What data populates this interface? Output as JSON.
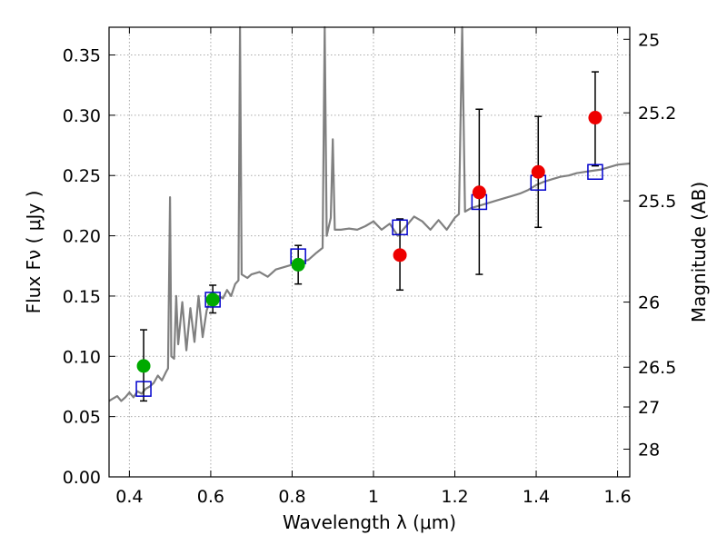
{
  "chart_data": {
    "type": "scatter",
    "title": "",
    "xlabel": "Wavelength  λ (μm)",
    "ylabel": "Flux  Fν  ( μJy )",
    "y2label": "Magnitude (AB)",
    "xlim": [
      0.35,
      1.63
    ],
    "ylim": [
      0.0,
      0.373
    ],
    "grid": true,
    "x_ticks": [
      0.4,
      0.6,
      0.8,
      1.0,
      1.2,
      1.4,
      1.6
    ],
    "x_tick_labels": [
      "0.4",
      "0.6",
      "0.8",
      "1",
      "1.2",
      "1.4",
      "1.6"
    ],
    "y_ticks": [
      0.0,
      0.05,
      0.1,
      0.15,
      0.2,
      0.25,
      0.3,
      0.35
    ],
    "y_tick_labels": [
      "0.00",
      "0.05",
      "0.10",
      "0.15",
      "0.20",
      "0.25",
      "0.30",
      "0.35"
    ],
    "y2_ticks": [
      {
        "label": "25",
        "flux": 0.363
      },
      {
        "label": "25.2",
        "flux": 0.302
      },
      {
        "label": "25.5",
        "flux": 0.229
      },
      {
        "label": "26",
        "flux": 0.145
      },
      {
        "label": "26.5",
        "flux": 0.091
      },
      {
        "label": "27",
        "flux": 0.058
      },
      {
        "label": "28",
        "flux": 0.023
      }
    ],
    "colors": {
      "spectrum": "#808080",
      "model": "#0000cc",
      "green": "#00aa00",
      "red": "#ee0000",
      "grid": "#aaaaaa",
      "errorbar": "#000000"
    },
    "series": [
      {
        "marker": "square",
        "color": "#0000cc",
        "x": [
          0.435,
          0.605,
          0.815,
          1.065,
          1.26,
          1.405,
          1.545
        ],
        "y": [
          0.073,
          0.147,
          0.183,
          0.207,
          0.228,
          0.244,
          0.253
        ]
      },
      {
        "marker": "circle",
        "color": "#00aa00",
        "x": [
          0.435,
          0.605,
          0.815
        ],
        "y": [
          0.092,
          0.147,
          0.176
        ],
        "yerr_low": [
          0.029,
          0.011,
          0.016
        ],
        "yerr_high": [
          0.03,
          0.012,
          0.016
        ]
      },
      {
        "marker": "circle",
        "color": "#ee0000",
        "x": [
          1.065,
          1.26,
          1.405,
          1.545
        ],
        "y": [
          0.184,
          0.236,
          0.253,
          0.298
        ],
        "yerr_low": [
          0.029,
          0.068,
          0.046,
          0.04
        ],
        "yerr_high": [
          0.03,
          0.069,
          0.046,
          0.038
        ]
      },
      {
        "type": "line",
        "color": "#808080",
        "points": [
          [
            0.35,
            0.063
          ],
          [
            0.36,
            0.065
          ],
          [
            0.37,
            0.067
          ],
          [
            0.38,
            0.063
          ],
          [
            0.39,
            0.066
          ],
          [
            0.4,
            0.07
          ],
          [
            0.41,
            0.066
          ],
          [
            0.42,
            0.071
          ],
          [
            0.43,
            0.069
          ],
          [
            0.44,
            0.073
          ],
          [
            0.45,
            0.075
          ],
          [
            0.46,
            0.078
          ],
          [
            0.47,
            0.084
          ],
          [
            0.48,
            0.08
          ],
          [
            0.49,
            0.087
          ],
          [
            0.495,
            0.09
          ],
          [
            0.5,
            0.232
          ],
          [
            0.503,
            0.1
          ],
          [
            0.51,
            0.098
          ],
          [
            0.515,
            0.15
          ],
          [
            0.52,
            0.11
          ],
          [
            0.53,
            0.145
          ],
          [
            0.54,
            0.105
          ],
          [
            0.55,
            0.14
          ],
          [
            0.56,
            0.112
          ],
          [
            0.57,
            0.15
          ],
          [
            0.58,
            0.116
          ],
          [
            0.59,
            0.138
          ],
          [
            0.6,
            0.148
          ],
          [
            0.61,
            0.143
          ],
          [
            0.62,
            0.15
          ],
          [
            0.63,
            0.148
          ],
          [
            0.64,
            0.155
          ],
          [
            0.65,
            0.15
          ],
          [
            0.66,
            0.16
          ],
          [
            0.668,
            0.163
          ],
          [
            0.672,
            0.373
          ],
          [
            0.676,
            0.168
          ],
          [
            0.69,
            0.165
          ],
          [
            0.7,
            0.168
          ],
          [
            0.72,
            0.17
          ],
          [
            0.74,
            0.166
          ],
          [
            0.76,
            0.172
          ],
          [
            0.78,
            0.174
          ],
          [
            0.8,
            0.176
          ],
          [
            0.82,
            0.178
          ],
          [
            0.84,
            0.18
          ],
          [
            0.86,
            0.186
          ],
          [
            0.875,
            0.19
          ],
          [
            0.88,
            0.373
          ],
          [
            0.885,
            0.2
          ],
          [
            0.895,
            0.215
          ],
          [
            0.9,
            0.28
          ],
          [
            0.905,
            0.205
          ],
          [
            0.92,
            0.205
          ],
          [
            0.94,
            0.206
          ],
          [
            0.96,
            0.205
          ],
          [
            0.98,
            0.208
          ],
          [
            1.0,
            0.212
          ],
          [
            1.02,
            0.205
          ],
          [
            1.04,
            0.21
          ],
          [
            1.06,
            0.2
          ],
          [
            1.08,
            0.208
          ],
          [
            1.1,
            0.216
          ],
          [
            1.12,
            0.212
          ],
          [
            1.14,
            0.205
          ],
          [
            1.16,
            0.213
          ],
          [
            1.18,
            0.205
          ],
          [
            1.2,
            0.215
          ],
          [
            1.21,
            0.218
          ],
          [
            1.218,
            0.373
          ],
          [
            1.225,
            0.22
          ],
          [
            1.24,
            0.223
          ],
          [
            1.26,
            0.225
          ],
          [
            1.28,
            0.227
          ],
          [
            1.3,
            0.229
          ],
          [
            1.32,
            0.231
          ],
          [
            1.34,
            0.233
          ],
          [
            1.36,
            0.235
          ],
          [
            1.38,
            0.238
          ],
          [
            1.4,
            0.242
          ],
          [
            1.42,
            0.245
          ],
          [
            1.44,
            0.247
          ],
          [
            1.46,
            0.249
          ],
          [
            1.48,
            0.25
          ],
          [
            1.5,
            0.252
          ],
          [
            1.52,
            0.253
          ],
          [
            1.54,
            0.254
          ],
          [
            1.56,
            0.255
          ],
          [
            1.58,
            0.257
          ],
          [
            1.6,
            0.259
          ],
          [
            1.63,
            0.26
          ]
        ]
      }
    ]
  }
}
